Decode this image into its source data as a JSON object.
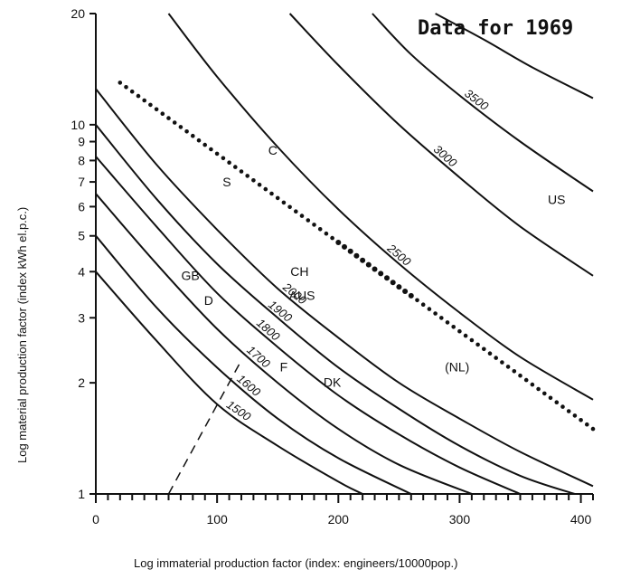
{
  "chart_data": {
    "type": "line",
    "title": "Data for 1969",
    "xlabel": "Log immaterial production factor (index: engineers/10000pop.)",
    "ylabel": "Log material production factor (index kWh el.p.c.)",
    "xlim": [
      0,
      410
    ],
    "ylim": [
      1,
      20
    ],
    "yscale": "log",
    "x_ticks": [
      0,
      100,
      200,
      300,
      400
    ],
    "y_ticks": [
      1,
      2,
      3,
      4,
      5,
      6,
      7,
      8,
      9,
      10,
      20
    ],
    "y_tick_labels": [
      "1",
      "2",
      "3",
      "4",
      "5",
      "6",
      "7",
      "8",
      "9",
      "10",
      "20"
    ],
    "grid": false,
    "iso_curves": [
      {
        "name": "1500",
        "points": [
          [
            0,
            4.0
          ],
          [
            50,
            2.6
          ],
          [
            100,
            1.75
          ],
          [
            150,
            1.35
          ],
          [
            200,
            1.08
          ],
          [
            220,
            1.0
          ]
        ]
      },
      {
        "name": "1600",
        "points": [
          [
            0,
            5.0
          ],
          [
            50,
            3.2
          ],
          [
            100,
            2.2
          ],
          [
            150,
            1.6
          ],
          [
            200,
            1.25
          ],
          [
            260,
            1.0
          ]
        ]
      },
      {
        "name": "1700",
        "points": [
          [
            0,
            6.5
          ],
          [
            50,
            4.2
          ],
          [
            100,
            2.8
          ],
          [
            150,
            2.0
          ],
          [
            200,
            1.5
          ],
          [
            250,
            1.2
          ],
          [
            310,
            1.0
          ]
        ]
      },
      {
        "name": "1800",
        "points": [
          [
            0,
            8.2
          ],
          [
            50,
            5.3
          ],
          [
            100,
            3.5
          ],
          [
            150,
            2.5
          ],
          [
            200,
            1.85
          ],
          [
            250,
            1.45
          ],
          [
            300,
            1.18
          ],
          [
            350,
            1.0
          ]
        ]
      },
      {
        "name": "1900",
        "points": [
          [
            0,
            10.0
          ],
          [
            50,
            6.3
          ],
          [
            100,
            4.2
          ],
          [
            150,
            3.0
          ],
          [
            200,
            2.2
          ],
          [
            250,
            1.7
          ],
          [
            300,
            1.35
          ],
          [
            350,
            1.12
          ],
          [
            395,
            1.0
          ]
        ]
      },
      {
        "name": "2000",
        "points": [
          [
            0,
            12.5
          ],
          [
            50,
            7.8
          ],
          [
            100,
            5.2
          ],
          [
            150,
            3.6
          ],
          [
            200,
            2.65
          ],
          [
            250,
            2.0
          ],
          [
            300,
            1.6
          ],
          [
            350,
            1.3
          ],
          [
            410,
            1.05
          ]
        ]
      },
      {
        "name": "2500",
        "points": [
          [
            60,
            20.0
          ],
          [
            100,
            13.5
          ],
          [
            150,
            8.7
          ],
          [
            200,
            5.9
          ],
          [
            250,
            4.2
          ],
          [
            300,
            3.1
          ],
          [
            350,
            2.35
          ],
          [
            410,
            1.8
          ]
        ]
      },
      {
        "name": "3000",
        "points": [
          [
            160,
            20.0
          ],
          [
            200,
            14.5
          ],
          [
            250,
            10.0
          ],
          [
            300,
            7.2
          ],
          [
            350,
            5.3
          ],
          [
            410,
            3.9
          ]
        ]
      },
      {
        "name": "3500",
        "points": [
          [
            228,
            20.0
          ],
          [
            260,
            15.5
          ],
          [
            300,
            12.0
          ],
          [
            350,
            9.0
          ],
          [
            410,
            6.6
          ]
        ]
      },
      {
        "name": "",
        "points": [
          [
            280,
            20.0
          ],
          [
            320,
            17.0
          ],
          [
            360,
            14.3
          ],
          [
            410,
            11.8
          ]
        ]
      }
    ],
    "countries": [
      {
        "label": "US",
        "x": 380,
        "y": 6.1
      },
      {
        "label": "S",
        "x": 108,
        "y": 6.8
      },
      {
        "label": "C",
        "x": 146,
        "y": 8.3
      },
      {
        "label": "CH",
        "x": 168,
        "y": 3.9
      },
      {
        "label": "AUS",
        "x": 170,
        "y": 3.35
      },
      {
        "label": "GB",
        "x": 78,
        "y": 3.8
      },
      {
        "label": "D",
        "x": 93,
        "y": 3.25
      },
      {
        "label": "F",
        "x": 155,
        "y": 2.15
      },
      {
        "label": "DK",
        "x": 195,
        "y": 1.95
      },
      {
        "label": "(NL)",
        "x": 298,
        "y": 2.15
      }
    ],
    "trend_dotted": [
      [
        20,
        13.0
      ],
      [
        410,
        1.5
      ]
    ],
    "dashed_line": [
      [
        60,
        1.0
      ],
      [
        120,
        2.3
      ]
    ]
  }
}
